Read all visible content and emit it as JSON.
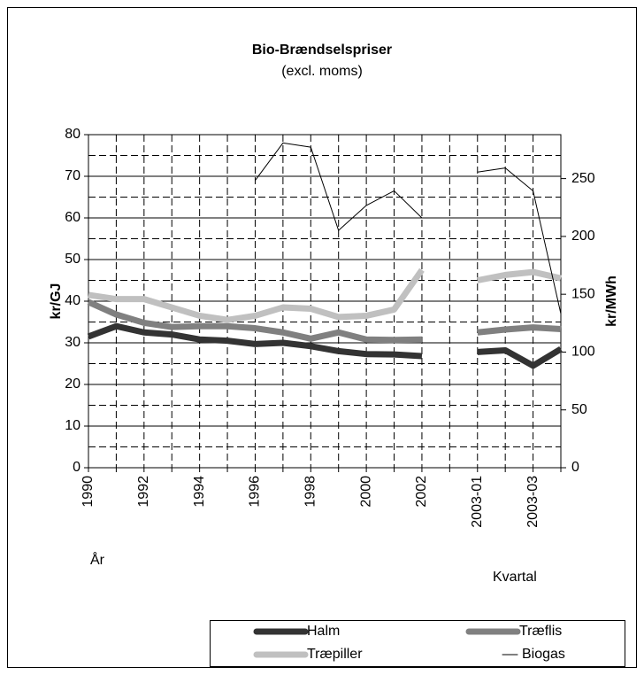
{
  "chart_data": {
    "type": "line",
    "title": "Bio-Brændselspriser",
    "subtitle": "(excl. moms)",
    "y_label": "kr/GJ",
    "y2_label": "kr/MWh",
    "x_label": "År",
    "x2_label": "Kvartal",
    "categories": [
      "1990",
      null,
      "1992",
      null,
      "1994",
      null,
      "1996",
      null,
      "1998",
      null,
      "2000",
      null,
      "2002",
      null,
      "2003-01",
      null,
      "2003-03",
      null
    ],
    "ylim": [
      0,
      80
    ],
    "yticks": [
      0,
      10,
      20,
      30,
      40,
      50,
      60,
      70,
      80
    ],
    "y2lim": [
      0,
      288
    ],
    "y2ticks": [
      0,
      50,
      100,
      150,
      200,
      250
    ],
    "grid": true,
    "legend": "bottom",
    "series": [
      {
        "name": "Halm",
        "color": "#333333",
        "width": 7,
        "values": [
          31.5,
          34,
          32.5,
          32,
          30.8,
          30.5,
          29.7,
          30,
          29.2,
          28,
          27.3,
          27.2,
          26.8,
          null,
          27.8,
          28.2,
          24.5,
          28.5
        ]
      },
      {
        "name": "Træflis",
        "color": "#808080",
        "width": 7,
        "values": [
          39.8,
          36.8,
          34.8,
          33.8,
          34,
          34,
          33.5,
          32.5,
          31,
          32.5,
          30.8,
          30.7,
          30.8,
          null,
          32.5,
          33.2,
          33.7,
          33.3
        ]
      },
      {
        "name": "Træpiller",
        "color": "#c0c0c0",
        "width": 7,
        "values": [
          41.5,
          40.5,
          40.5,
          38.5,
          36.5,
          35.5,
          36.5,
          38.5,
          38.2,
          36.2,
          36.5,
          38,
          47.5,
          null,
          45,
          46.3,
          47,
          45.5
        ]
      },
      {
        "name": "Biogas",
        "color": "#000000",
        "width": 1,
        "values": [
          null,
          null,
          null,
          null,
          null,
          null,
          69,
          78,
          77,
          57,
          63,
          66.5,
          60,
          null,
          71,
          72,
          66.5,
          37
        ]
      }
    ]
  }
}
